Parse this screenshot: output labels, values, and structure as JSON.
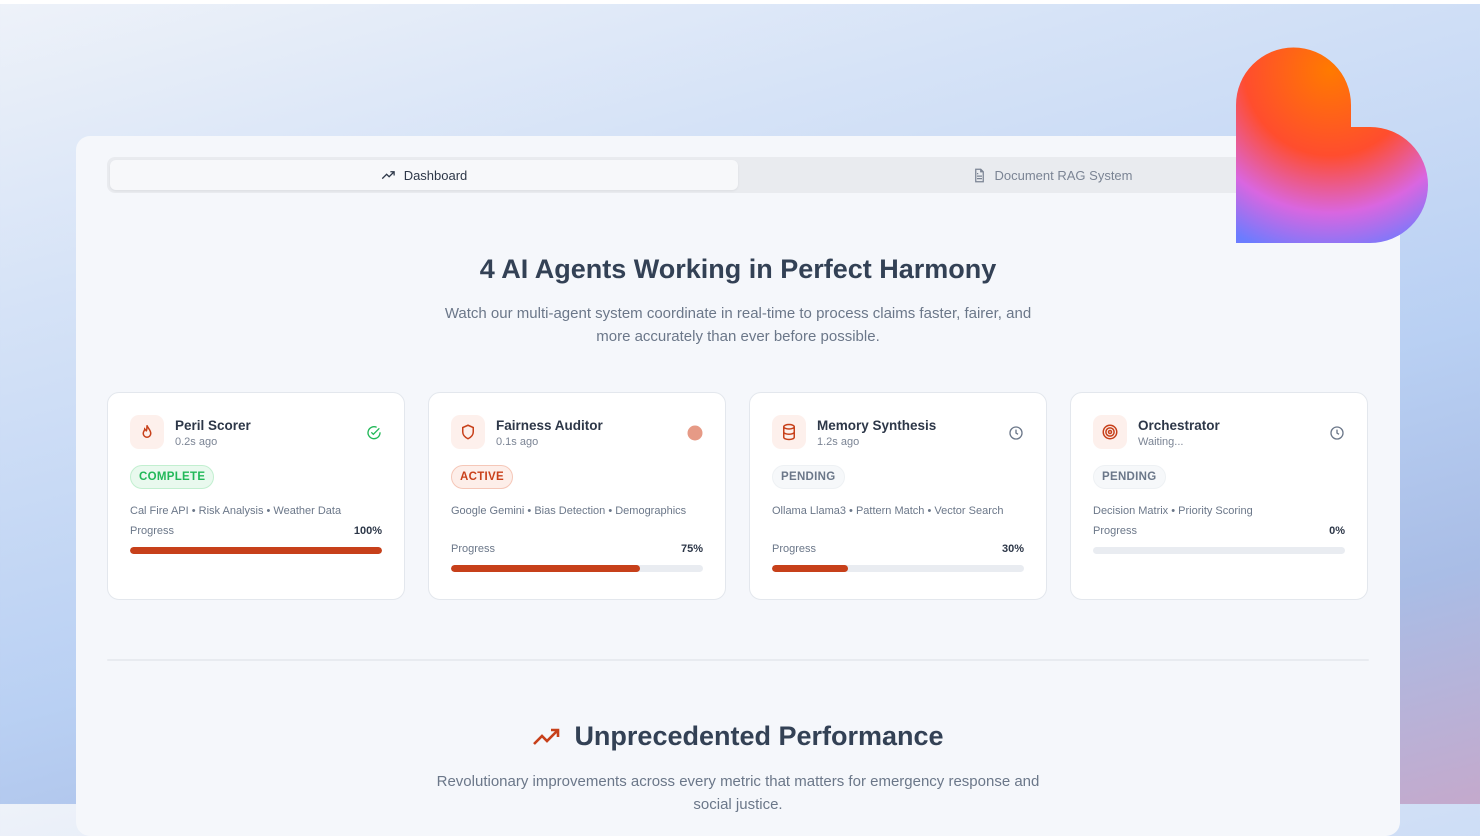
{
  "tabs": [
    {
      "label": "Dashboard",
      "icon": "trending-up-icon",
      "active": true
    },
    {
      "label": "Document RAG System",
      "icon": "document-icon",
      "active": false
    }
  ],
  "hero": {
    "title": "4 AI Agents Working in Perfect Harmony",
    "subtitle": "Watch our multi-agent system coordinate in real-time to process claims faster, fairer, and more accurately than ever before possible."
  },
  "agents": [
    {
      "name": "Peril Scorer",
      "time": "0.2s ago",
      "icon": "flame-icon",
      "status_icon": "check-circle-icon",
      "status": "COMPLETE",
      "tags": "Cal Fire API • Risk Analysis • Weather Data",
      "progress_label": "Progress",
      "progress": 100,
      "progress_text": "100%"
    },
    {
      "name": "Fairness Auditor",
      "time": "0.1s ago",
      "icon": "shield-icon",
      "status_icon": "active-dot-icon",
      "status": "ACTIVE",
      "tags": "Google Gemini • Bias Detection • Demographics",
      "progress_label": "Progress",
      "progress": 75,
      "progress_text": "75%"
    },
    {
      "name": "Memory Synthesis",
      "time": "1.2s ago",
      "icon": "database-icon",
      "status_icon": "clock-icon",
      "status": "PENDING",
      "tags": "Ollama Llama3 • Pattern Match • Vector Search",
      "progress_label": "Progress",
      "progress": 30,
      "progress_text": "30%"
    },
    {
      "name": "Orchestrator",
      "time": "Waiting...",
      "icon": "target-icon",
      "status_icon": "clock-icon",
      "status": "PENDING",
      "tags": "Decision Matrix • Priority Scoring",
      "progress_label": "Progress",
      "progress": 0,
      "progress_text": "0%"
    }
  ],
  "performance": {
    "title": "Unprecedented Performance",
    "subtitle": "Revolutionary improvements across every metric that matters for emergency response and social justice."
  },
  "colors": {
    "accent": "#c7401a",
    "complete": "#22b858",
    "text": "#334155"
  }
}
